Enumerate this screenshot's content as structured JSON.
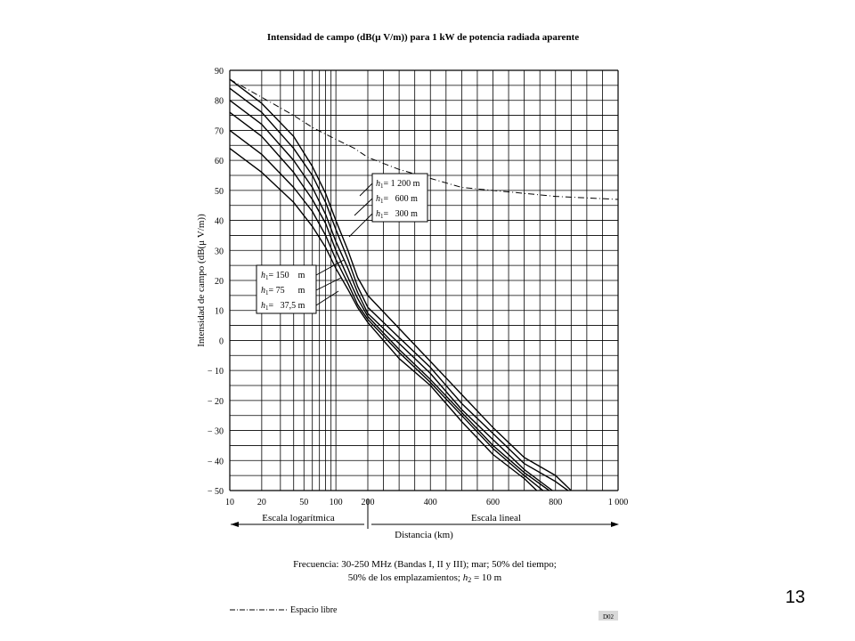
{
  "slide_number": "13",
  "figure_code": "D02",
  "chart_data": {
    "type": "line",
    "title": "Intensidad de campo (dB(μ V/m)) para 1 kW de potencia radiada aparente",
    "xlabel": "Distancia (km)",
    "ylabel": "Intensidad de campo (dB(μ V/m))",
    "ylim": [
      -50,
      90
    ],
    "y_ticks": [
      90,
      80,
      70,
      60,
      50,
      40,
      30,
      20,
      10,
      0,
      -10,
      -20,
      -30,
      -40,
      -50
    ],
    "y_tick_labels": [
      "90",
      "80",
      "70",
      "60",
      "50",
      "40",
      "30",
      "20",
      "10",
      "0",
      "− 10",
      "− 20",
      "− 30",
      "− 40",
      "− 50"
    ],
    "x_ticks": [
      10,
      20,
      50,
      100,
      200,
      400,
      600,
      800,
      1000
    ],
    "x_tick_labels": [
      "10",
      "20",
      "50",
      "100",
      "200",
      "400",
      "600",
      "800",
      "1 000"
    ],
    "x_log_range": [
      10,
      200
    ],
    "x_linear_range": [
      200,
      1000
    ],
    "scale_log_label": "Escala logarítmica",
    "scale_linear_label": "Escala lineal",
    "grid": true,
    "series": [
      {
        "name": "h₁ = 1 200 m",
        "label_parts": [
          "h",
          "1",
          "= 1 200 m"
        ],
        "style": "solid",
        "x": [
          10,
          20,
          40,
          60,
          80,
          100,
          130,
          160,
          200,
          300,
          400,
          500,
          600,
          700,
          800,
          850
        ],
        "y": [
          87,
          79,
          68,
          58,
          49,
          40,
          30,
          21,
          15,
          4,
          -7,
          -18,
          -29,
          -39,
          -45,
          -50
        ]
      },
      {
        "name": "h₁ = 600 m",
        "label_parts": [
          "h",
          "1",
          "=   600 m"
        ],
        "style": "solid",
        "x": [
          10,
          20,
          40,
          60,
          80,
          100,
          130,
          160,
          200,
          300,
          400,
          500,
          600,
          700,
          800,
          840
        ],
        "y": [
          84,
          76,
          64,
          55,
          46,
          37,
          27,
          18,
          11,
          1,
          -9,
          -21,
          -31,
          -41,
          -47,
          -50
        ]
      },
      {
        "name": "h₁ = 300 m",
        "label_parts": [
          "h",
          "1",
          "=   300 m"
        ],
        "style": "solid",
        "x": [
          10,
          20,
          40,
          60,
          80,
          100,
          130,
          160,
          200,
          300,
          400,
          500,
          600,
          700,
          790
        ],
        "y": [
          80,
          72,
          60,
          51,
          42,
          33,
          24,
          16,
          9,
          -1,
          -11,
          -23,
          -33,
          -43,
          -50
        ]
      },
      {
        "name": "h₁ = 150 m",
        "label_parts": [
          "h",
          "1",
          "= 150    m"
        ],
        "style": "solid",
        "x": [
          10,
          20,
          40,
          60,
          80,
          100,
          130,
          160,
          200,
          300,
          400,
          500,
          600,
          700,
          780
        ],
        "y": [
          76,
          68,
          56,
          47,
          39,
          30,
          21,
          14,
          8,
          -3,
          -13,
          -24,
          -35,
          -44,
          -50
        ]
      },
      {
        "name": "h₁ = 75 m",
        "label_parts": [
          "h",
          "1",
          "= 75      m"
        ],
        "style": "solid",
        "x": [
          10,
          20,
          40,
          60,
          80,
          100,
          130,
          160,
          200,
          300,
          400,
          500,
          600,
          700,
          760
        ],
        "y": [
          70,
          62,
          51,
          43,
          35,
          27,
          19,
          12,
          7,
          -4,
          -14,
          -25,
          -36,
          -45,
          -50
        ]
      },
      {
        "name": "h₁ = 37,5 m",
        "label_parts": [
          "h",
          "1",
          "=   37,5 m"
        ],
        "style": "solid",
        "x": [
          10,
          20,
          40,
          60,
          80,
          100,
          130,
          160,
          200,
          300,
          400,
          500,
          600,
          700,
          740
        ],
        "y": [
          64,
          56,
          46,
          38,
          31,
          24,
          17,
          11,
          6,
          -6,
          -15,
          -27,
          -38,
          -46,
          -50
        ]
      },
      {
        "name": "Espacio libre",
        "style": "dash-dot",
        "x": [
          10,
          20,
          40,
          60,
          100,
          150,
          200,
          300,
          400,
          500,
          600,
          700,
          800,
          900,
          1000
        ],
        "y": [
          87,
          81,
          75,
          71,
          67,
          64,
          61,
          57,
          54,
          51,
          50,
          49,
          48,
          47.5,
          47
        ]
      }
    ],
    "footnote_line1": "Frecuencia: 30-250 MHz (Bandas I, II y III); mar; 50% del tiempo;",
    "footnote_line2_before": "50% de los emplazamientos; ",
    "footnote_line2_var": "h",
    "footnote_line2_sub": "2",
    "footnote_line2_after": " = 10 m",
    "legend_free_space": "Espacio libre"
  }
}
